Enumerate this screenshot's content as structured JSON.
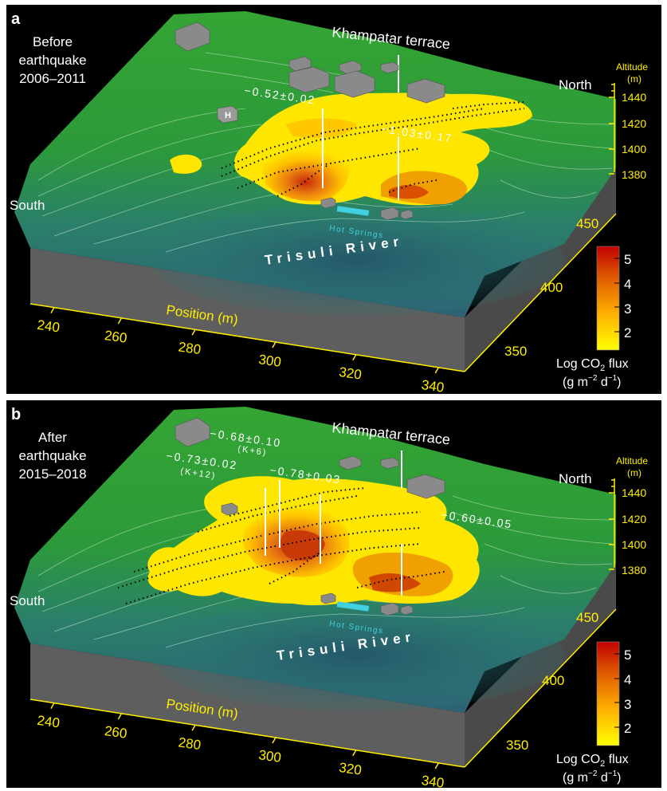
{
  "panels": [
    {
      "id": "a",
      "letter": "a",
      "period_line1": "Before",
      "period_line2": "earthquake",
      "period_line3": "2006–2011",
      "terrace_label": "Khampatar terrace",
      "river_label": "Trisuli River",
      "springs_label": "Hot Springs",
      "helipad_label": "H",
      "north_label": "North",
      "south_label": "South",
      "altitude_title_1": "Altitude",
      "altitude_title_2": "(m)",
      "altitude_ticks": [
        "1440",
        "1420",
        "1400",
        "1380"
      ],
      "position_label": "Position (m)",
      "x_ticks": [
        "240",
        "260",
        "280",
        "300",
        "320",
        "340"
      ],
      "y_ticks": [
        "450",
        "400",
        "350"
      ],
      "colorbar_ticks": [
        "5",
        "4",
        "3",
        "2"
      ],
      "colorbar_title": "Log CO",
      "colorbar_sub": "2",
      "colorbar_title_tail": " flux",
      "colorbar_unit": "(g m",
      "colorbar_unit_exp1": "−2",
      "colorbar_unit_mid": " d",
      "colorbar_unit_exp2": "−1",
      "colorbar_unit_tail": ")",
      "profiles": [
        {
          "label": "−0.52±0.02",
          "sublabel": ""
        },
        {
          "label": "−1.03±0.17",
          "sublabel": ""
        }
      ]
    },
    {
      "id": "b",
      "letter": "b",
      "period_line1": "After",
      "period_line2": "earthquake",
      "period_line3": "2015–2018",
      "terrace_label": "Khampatar terrace",
      "river_label": "Trisuli River",
      "springs_label": "Hot Springs",
      "helipad_label": "",
      "north_label": "North",
      "south_label": "South",
      "altitude_title_1": "Altitude",
      "altitude_title_2": "(m)",
      "altitude_ticks": [
        "1440",
        "1420",
        "1400",
        "1380"
      ],
      "position_label": "Position (m)",
      "x_ticks": [
        "240",
        "260",
        "280",
        "300",
        "320",
        "340"
      ],
      "y_ticks": [
        "450",
        "400",
        "350"
      ],
      "colorbar_ticks": [
        "5",
        "4",
        "3",
        "2"
      ],
      "colorbar_title": "Log CO",
      "colorbar_sub": "2",
      "colorbar_title_tail": " flux",
      "colorbar_unit": "(g m",
      "colorbar_unit_exp1": "−2",
      "colorbar_unit_mid": " d",
      "colorbar_unit_exp2": "−1",
      "colorbar_unit_tail": ")",
      "profiles": [
        {
          "label": "−0.68±0.10",
          "sublabel": "(K+6)"
        },
        {
          "label": "−0.73±0.02",
          "sublabel": "(K+12)"
        },
        {
          "label": "−0.78±0.03",
          "sublabel": ""
        },
        {
          "label": "−0.60±0.05",
          "sublabel": ""
        }
      ]
    }
  ],
  "colors": {
    "background": "#000000",
    "terrain_green": "#2e9e2e",
    "river_teal": "#2f6f7a",
    "flux_low": "#ffe600",
    "flux_mid": "#ff9a00",
    "flux_high": "#c81e00",
    "axis_yellow": "#ffee00",
    "springs_cyan": "#40d0e0",
    "building_gray": "#8c8c8c"
  }
}
